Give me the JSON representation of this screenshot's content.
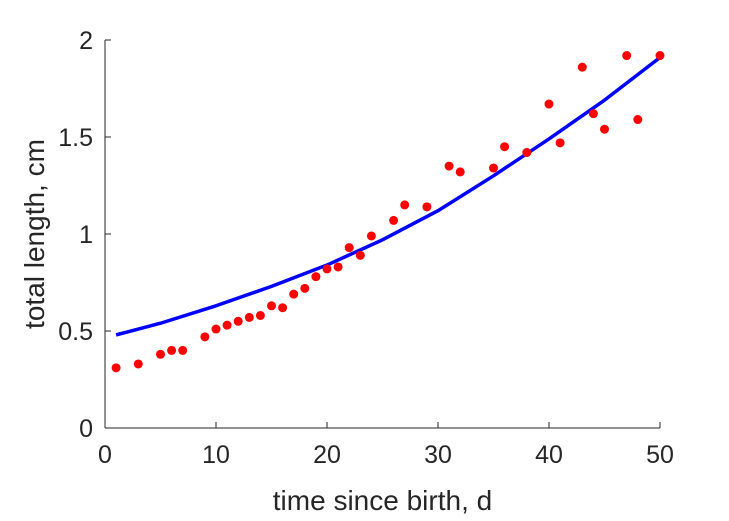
{
  "chart_data": {
    "type": "scatter",
    "title": "",
    "xlabel": "time since birth, d",
    "ylabel": "total length, cm",
    "xlim": [
      0,
      50
    ],
    "ylim": [
      0,
      2
    ],
    "xticks": [
      0,
      10,
      20,
      30,
      40,
      50
    ],
    "yticks": [
      0,
      0.5,
      1,
      1.5,
      2
    ],
    "xtick_labels": [
      "0",
      "10",
      "20",
      "30",
      "40",
      "50"
    ],
    "ytick_labels": [
      "0",
      "0.5",
      "1",
      "1.5",
      "2"
    ],
    "grid": false,
    "series": [
      {
        "kind": "points",
        "color": "#ff0000",
        "x": [
          1,
          3,
          5,
          6,
          7,
          9,
          10,
          11,
          12,
          13,
          14,
          15,
          16,
          17,
          18,
          19,
          20,
          21,
          22,
          23,
          24,
          26,
          27,
          29,
          31,
          32,
          35,
          36,
          38,
          40,
          41,
          43,
          44,
          45,
          47,
          48,
          50
        ],
        "y": [
          0.31,
          0.33,
          0.38,
          0.4,
          0.4,
          0.47,
          0.51,
          0.53,
          0.55,
          0.57,
          0.58,
          0.63,
          0.62,
          0.69,
          0.72,
          0.78,
          0.82,
          0.83,
          0.93,
          0.89,
          0.99,
          1.07,
          1.15,
          1.14,
          1.35,
          1.32,
          1.34,
          1.45,
          1.42,
          1.67,
          1.47,
          1.86,
          1.62,
          1.54,
          1.92,
          1.59,
          1.92
        ]
      },
      {
        "kind": "line",
        "color": "#0000ff",
        "x": [
          1,
          5,
          10,
          15,
          20,
          25,
          30,
          35,
          40,
          45,
          50
        ],
        "y": [
          0.48,
          0.54,
          0.63,
          0.73,
          0.84,
          0.97,
          1.12,
          1.3,
          1.49,
          1.69,
          1.91
        ]
      }
    ]
  }
}
